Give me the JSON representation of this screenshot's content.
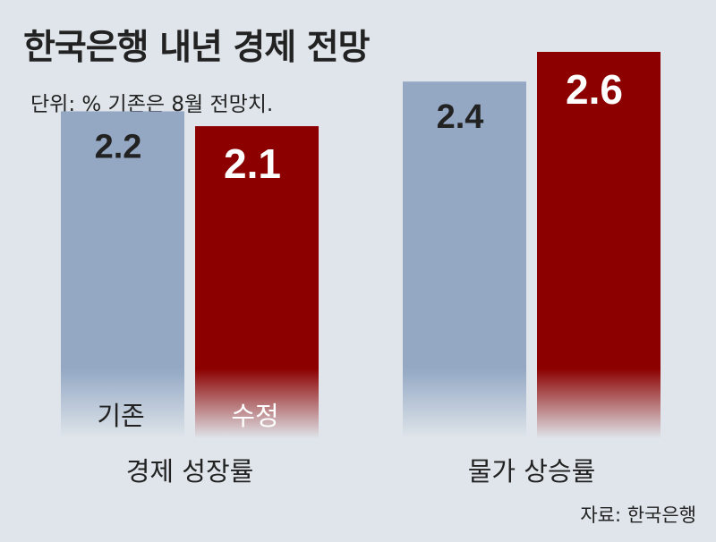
{
  "title": "한국은행 내년 경제 전망",
  "subtitle": "단위: %  기존은 8월 전망치.",
  "source": "자료: 한국은행",
  "colors": {
    "background": "#dfe5ea",
    "existing": "#94a8c4",
    "revised": "#8c0000"
  },
  "chart_data": {
    "type": "bar",
    "title": "한국은행 내년 경제 전망",
    "subtitle": "단위: %  기존은 8월 전망치.",
    "categories": [
      "경제 성장률",
      "물가 상승률"
    ],
    "series": [
      {
        "name": "기존",
        "values": [
          2.2,
          2.4
        ]
      },
      {
        "name": "수정",
        "values": [
          2.1,
          2.6
        ]
      }
    ],
    "value_labels": [
      [
        "2.2",
        "2.1"
      ],
      [
        "2.4",
        "2.6"
      ]
    ],
    "ylim": [
      0,
      2.6
    ],
    "grid": false,
    "legend": "labels inside bars"
  }
}
